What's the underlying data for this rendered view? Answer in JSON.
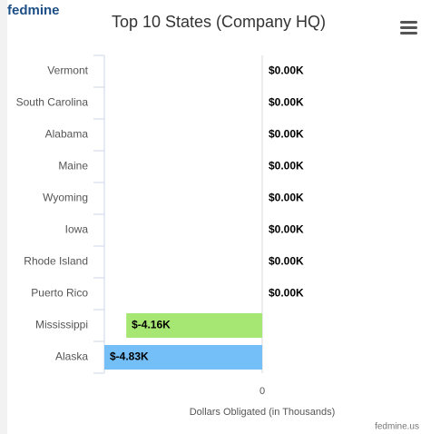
{
  "logo": "fedmine",
  "chart_data": {
    "type": "bar",
    "orientation": "horizontal",
    "title": "Top 10 States (Company HQ)",
    "categories": [
      "Vermont",
      "South Carolina",
      "Alabama",
      "Maine",
      "Wyoming",
      "Iowa",
      "Rhode Island",
      "Puerto Rico",
      "Mississippi",
      "Alaska"
    ],
    "values": [
      0,
      0,
      0,
      0,
      0,
      0,
      0,
      0,
      -4.16,
      -4.83
    ],
    "value_labels": [
      "$0.00K",
      "$0.00K",
      "$0.00K",
      "$0.00K",
      "$0.00K",
      "$0.00K",
      "$0.00K",
      "$0.00K",
      "$-4.16K",
      "$-4.83K"
    ],
    "colors": [
      "#7cb5ec",
      "#7cb5ec",
      "#7cb5ec",
      "#7cb5ec",
      "#7cb5ec",
      "#7cb5ec",
      "#7cb5ec",
      "#7cb5ec",
      "#a6e672",
      "#74bff8"
    ],
    "x_label": "Dollars Obligated (in Thousands)",
    "xlim": [
      -4.83,
      0
    ],
    "xticks": [
      0
    ],
    "credit": "fedmine.us"
  }
}
